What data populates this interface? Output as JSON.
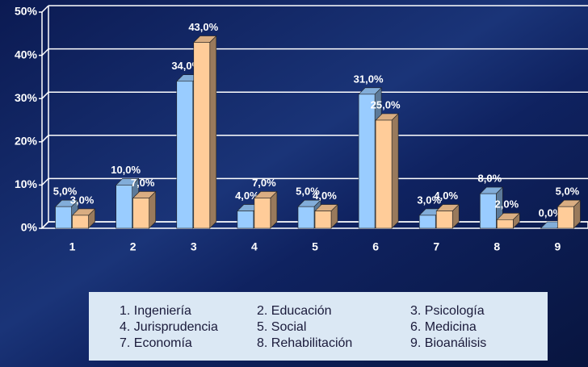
{
  "chart_data": {
    "type": "bar3d",
    "categories": [
      "1",
      "2",
      "3",
      "4",
      "5",
      "6",
      "7",
      "8",
      "9"
    ],
    "series": [
      {
        "color": "#99ccff",
        "values": [
          5,
          10,
          34,
          4,
          5,
          31,
          3,
          8,
          0
        ],
        "value_labels": [
          "5,0%",
          "10,0%",
          "34,0%",
          "4,0%",
          "5,0%",
          "31,0%",
          "3,0%",
          "8,0%",
          "0,0%"
        ]
      },
      {
        "color": "#ffcc99",
        "values": [
          3,
          7,
          43,
          7,
          4,
          25,
          4,
          2,
          5
        ],
        "value_labels": [
          "3,0%",
          "7,0%",
          "43,0%",
          "7,0%",
          "4,0%",
          "25,0%",
          "4,0%",
          "2,0%",
          "5,0%"
        ]
      }
    ],
    "ylim": [
      0,
      50
    ],
    "yticks": [
      {
        "value": 0,
        "label": "0%"
      },
      {
        "value": 10,
        "label": "10%"
      },
      {
        "value": 20,
        "label": "20%"
      },
      {
        "value": 30,
        "label": "30%"
      },
      {
        "value": 40,
        "label": "40%"
      },
      {
        "value": 50,
        "label": "50%"
      }
    ],
    "grid": true,
    "category_key": [
      "1. Ingeniería",
      "2. Educación",
      "3. Psicología",
      "4. Jurisprudencia",
      "5. Social",
      "6. Medicina",
      "7. Economía",
      "8. Rehabilitación",
      "9. Bioanálisis"
    ]
  }
}
